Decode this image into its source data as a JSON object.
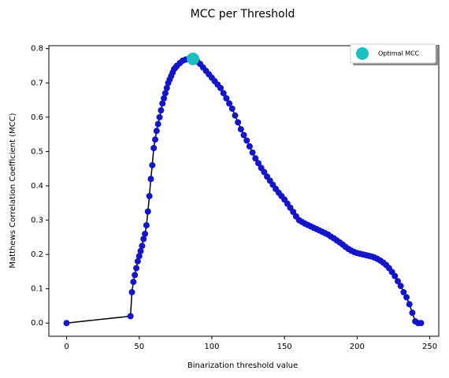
{
  "chart_data": {
    "type": "line",
    "title": "MCC per Threshold",
    "xlabel": "Binarization threshold value",
    "ylabel": "Matthews Correlation Coefficient (MCC)",
    "xlim": [
      -12.2,
      256.2
    ],
    "ylim": [
      -0.0385,
      0.8085
    ],
    "xticks": [
      0,
      50,
      100,
      150,
      200,
      250
    ],
    "yticks": [
      {
        "value": 0,
        "label": "0.0"
      },
      0.1,
      0.2,
      0.3,
      0.4,
      0.5,
      0.6,
      0.7,
      0.8
    ],
    "legend": "upper right",
    "series": [
      {
        "color": "#1414c8",
        "line_color": "#000000",
        "x": [
          0,
          44,
          45,
          46,
          47,
          48,
          49,
          50,
          51,
          52,
          53,
          54,
          55,
          56,
          57,
          58,
          59,
          60,
          61,
          62,
          63,
          64,
          65,
          66,
          67,
          68,
          69,
          70,
          71,
          72,
          73,
          74,
          75,
          76,
          78,
          80,
          82,
          84,
          86,
          88,
          90,
          92,
          94,
          96,
          98,
          100,
          102,
          104,
          106,
          108,
          110,
          112,
          114,
          116,
          118,
          120,
          122,
          124,
          126,
          128,
          130,
          132,
          134,
          136,
          138,
          140,
          142,
          144,
          146,
          148,
          150,
          152,
          154,
          156,
          158,
          160,
          162,
          164,
          166,
          168,
          170,
          172,
          174,
          176,
          178,
          180,
          182,
          184,
          186,
          188,
          190,
          192,
          194,
          196,
          198,
          200,
          202,
          204,
          206,
          208,
          210,
          212,
          214,
          216,
          218,
          220,
          222,
          224,
          226,
          228,
          230,
          232,
          234,
          236,
          238,
          240,
          242,
          244
        ],
        "values": [
          0,
          0.02,
          0.09,
          0.12,
          0.14,
          0.16,
          0.18,
          0.195,
          0.21,
          0.225,
          0.245,
          0.26,
          0.285,
          0.325,
          0.37,
          0.42,
          0.46,
          0.51,
          0.535,
          0.56,
          0.58,
          0.6,
          0.62,
          0.64,
          0.655,
          0.67,
          0.685,
          0.7,
          0.71,
          0.72,
          0.73,
          0.74,
          0.745,
          0.75,
          0.758,
          0.765,
          0.768,
          0.77,
          0.77,
          0.768,
          0.762,
          0.755,
          0.745,
          0.735,
          0.725,
          0.715,
          0.705,
          0.695,
          0.685,
          0.67,
          0.655,
          0.64,
          0.625,
          0.605,
          0.585,
          0.565,
          0.548,
          0.532,
          0.515,
          0.497,
          0.48,
          0.466,
          0.452,
          0.44,
          0.427,
          0.415,
          0.403,
          0.391,
          0.38,
          0.37,
          0.36,
          0.348,
          0.336,
          0.324,
          0.311,
          0.3,
          0.295,
          0.29,
          0.286,
          0.282,
          0.278,
          0.274,
          0.27,
          0.266,
          0.262,
          0.258,
          0.252,
          0.247,
          0.241,
          0.235,
          0.229,
          0.222,
          0.216,
          0.211,
          0.207,
          0.204,
          0.202,
          0.2,
          0.198,
          0.196,
          0.194,
          0.191,
          0.187,
          0.182,
          0.176,
          0.169,
          0.16,
          0.149,
          0.137,
          0.122,
          0.108,
          0.09,
          0.075,
          0.055,
          0.03,
          0.005,
          0,
          0
        ]
      },
      {
        "name": "Optimal MCC",
        "color": "#1cbfbf",
        "x": [
          87
        ],
        "values": [
          0.77
        ]
      }
    ]
  }
}
